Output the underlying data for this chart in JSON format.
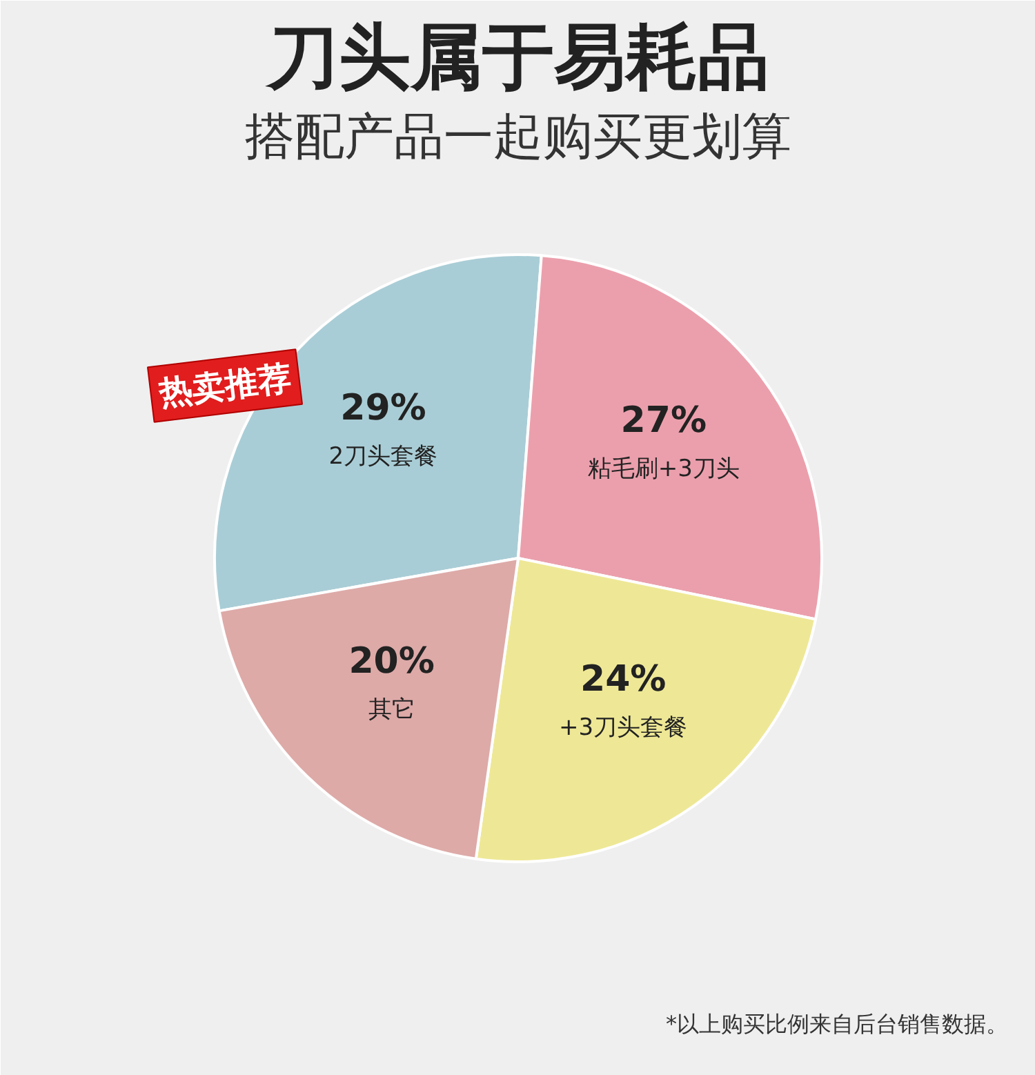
{
  "chart_data": {
    "type": "pie",
    "title": "刀头属于易耗品",
    "subtitle": "搭配产品一起购买更划算",
    "categories": [
      "2刀头套餐",
      "粘毛刷+3刀头",
      "+3刀头套餐",
      "其它"
    ],
    "values": [
      29,
      27,
      24,
      20
    ],
    "value_labels": [
      "29%",
      "27%",
      "24%",
      "20%"
    ],
    "colors": [
      "#a9cdd6",
      "#eb9fac",
      "#eee896",
      "#ddaaa8"
    ],
    "annotations": [
      "热卖推荐",
      "*以上购买比例来自后台销售数据。"
    ]
  }
}
